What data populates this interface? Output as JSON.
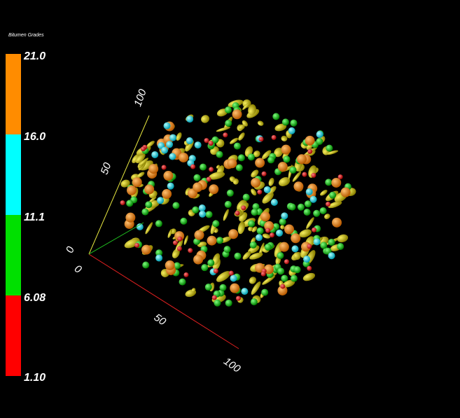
{
  "legend": {
    "title": "Bitumen Grades",
    "labels": [
      "21.0",
      "16.0",
      "11.1",
      "6.08",
      "1.10"
    ]
  },
  "axes": {
    "y_labels": [
      "0",
      "50",
      "100"
    ],
    "x_labels": [
      "0",
      "50",
      "100"
    ]
  }
}
